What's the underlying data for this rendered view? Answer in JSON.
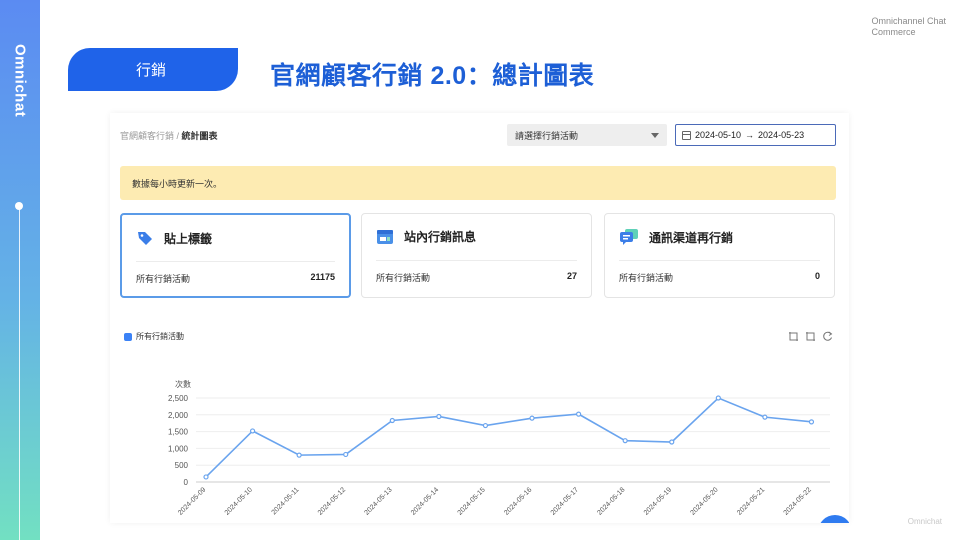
{
  "sidebar": {
    "brand": "Omnichat"
  },
  "top_right": {
    "line1": "Omnichannel Chat",
    "line2": "Commerce"
  },
  "footer_brand": "Omnichat",
  "section_tag": "行銷",
  "slide_title": "官網顧客行銷 2.0：總計圖表",
  "panel": {
    "breadcrumb_parent": "官網顧客行銷",
    "breadcrumb_sep": " / ",
    "breadcrumb_current": "統計圖表",
    "campaign_select": "請選擇行銷活動",
    "date_start": "2024-05-10",
    "date_arrow": "→",
    "date_end": "2024-05-23",
    "notice": "數據每小時更新一次。"
  },
  "cards": [
    {
      "title": "貼上標籤",
      "label": "所有行銷活動",
      "value": "21175",
      "icon": "tag-icon"
    },
    {
      "title": "站內行銷訊息",
      "label": "所有行銷活動",
      "value": "27",
      "icon": "onsite-message-icon"
    },
    {
      "title": "通訊渠道再行銷",
      "label": "所有行銷活動",
      "value": "0",
      "icon": "chat-channel-icon"
    }
  ],
  "colors": {
    "accent": "#1f63e9",
    "line": "#6aa4ee",
    "notice": "#fdebb2",
    "title": "#1d5fd6"
  },
  "chart_data": {
    "type": "line",
    "ylabel": "次數",
    "legend": "所有行銷活動",
    "legend_position": "top-left",
    "grid": true,
    "ylim": [
      0,
      2500
    ],
    "yticks": [
      "0",
      "500",
      "1,000",
      "1,500",
      "2,000",
      "2,500"
    ],
    "categories": [
      "2024-05-09",
      "2024-05-10",
      "2024-05-11",
      "2024-05-12",
      "2024-05-13",
      "2024-05-14",
      "2024-05-15",
      "2024-05-16",
      "2024-05-17",
      "2024-05-18",
      "2024-05-19",
      "2024-05-20",
      "2024-05-21",
      "2024-05-22"
    ],
    "series": [
      {
        "name": "所有行銷活動",
        "values": [
          150,
          1520,
          800,
          820,
          1830,
          1950,
          1680,
          1900,
          2020,
          1230,
          1190,
          2500,
          1930,
          1790
        ]
      }
    ]
  }
}
